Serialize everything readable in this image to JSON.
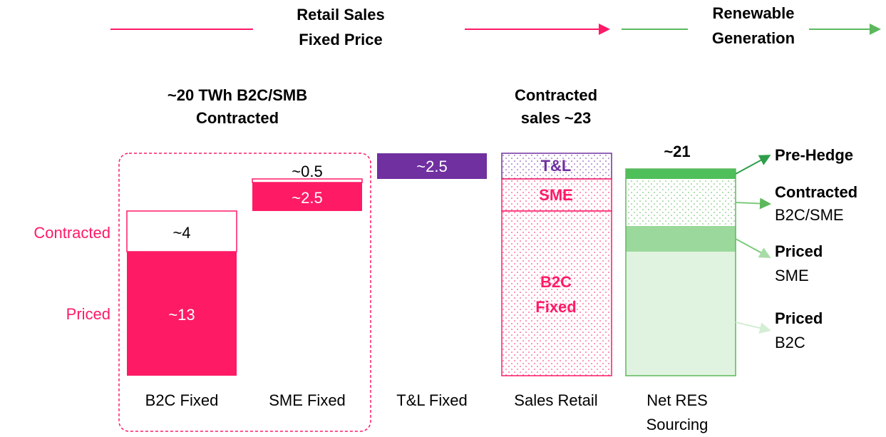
{
  "header": {
    "retail_title": [
      "Retail Sales",
      "Fixed Price"
    ],
    "renewable_title": [
      "Renewable",
      "Generation"
    ]
  },
  "groups": {
    "contracted_group": [
      "~20 TWh B2C/SMB",
      "Contracted"
    ],
    "sales_group": [
      "Contracted",
      "sales ~23"
    ]
  },
  "row_labels": {
    "contracted": "Contracted",
    "priced": "Priced"
  },
  "columns": [
    {
      "label": [
        "B2C Fixed"
      ],
      "segments": [
        "~4",
        "~13"
      ]
    },
    {
      "label": [
        "SME Fixed"
      ],
      "segments": [
        "~0.5",
        "~2.5"
      ]
    },
    {
      "label": [
        "T&L Fixed"
      ],
      "segments": [
        "~2.5"
      ]
    },
    {
      "label": [
        "Sales Retail"
      ],
      "segments": [
        "T&L",
        "SME",
        "B2C",
        "Fixed"
      ]
    },
    {
      "label": [
        "Net RES",
        "Sourcing"
      ],
      "total": "~21"
    }
  ],
  "legend": [
    {
      "bold": "Pre-Hedge"
    },
    {
      "bold": "Contracted",
      "text": "B2C/SME"
    },
    {
      "bold": "Priced",
      "text": "SME"
    },
    {
      "bold": "Priced",
      "text": "B2C"
    }
  ]
}
